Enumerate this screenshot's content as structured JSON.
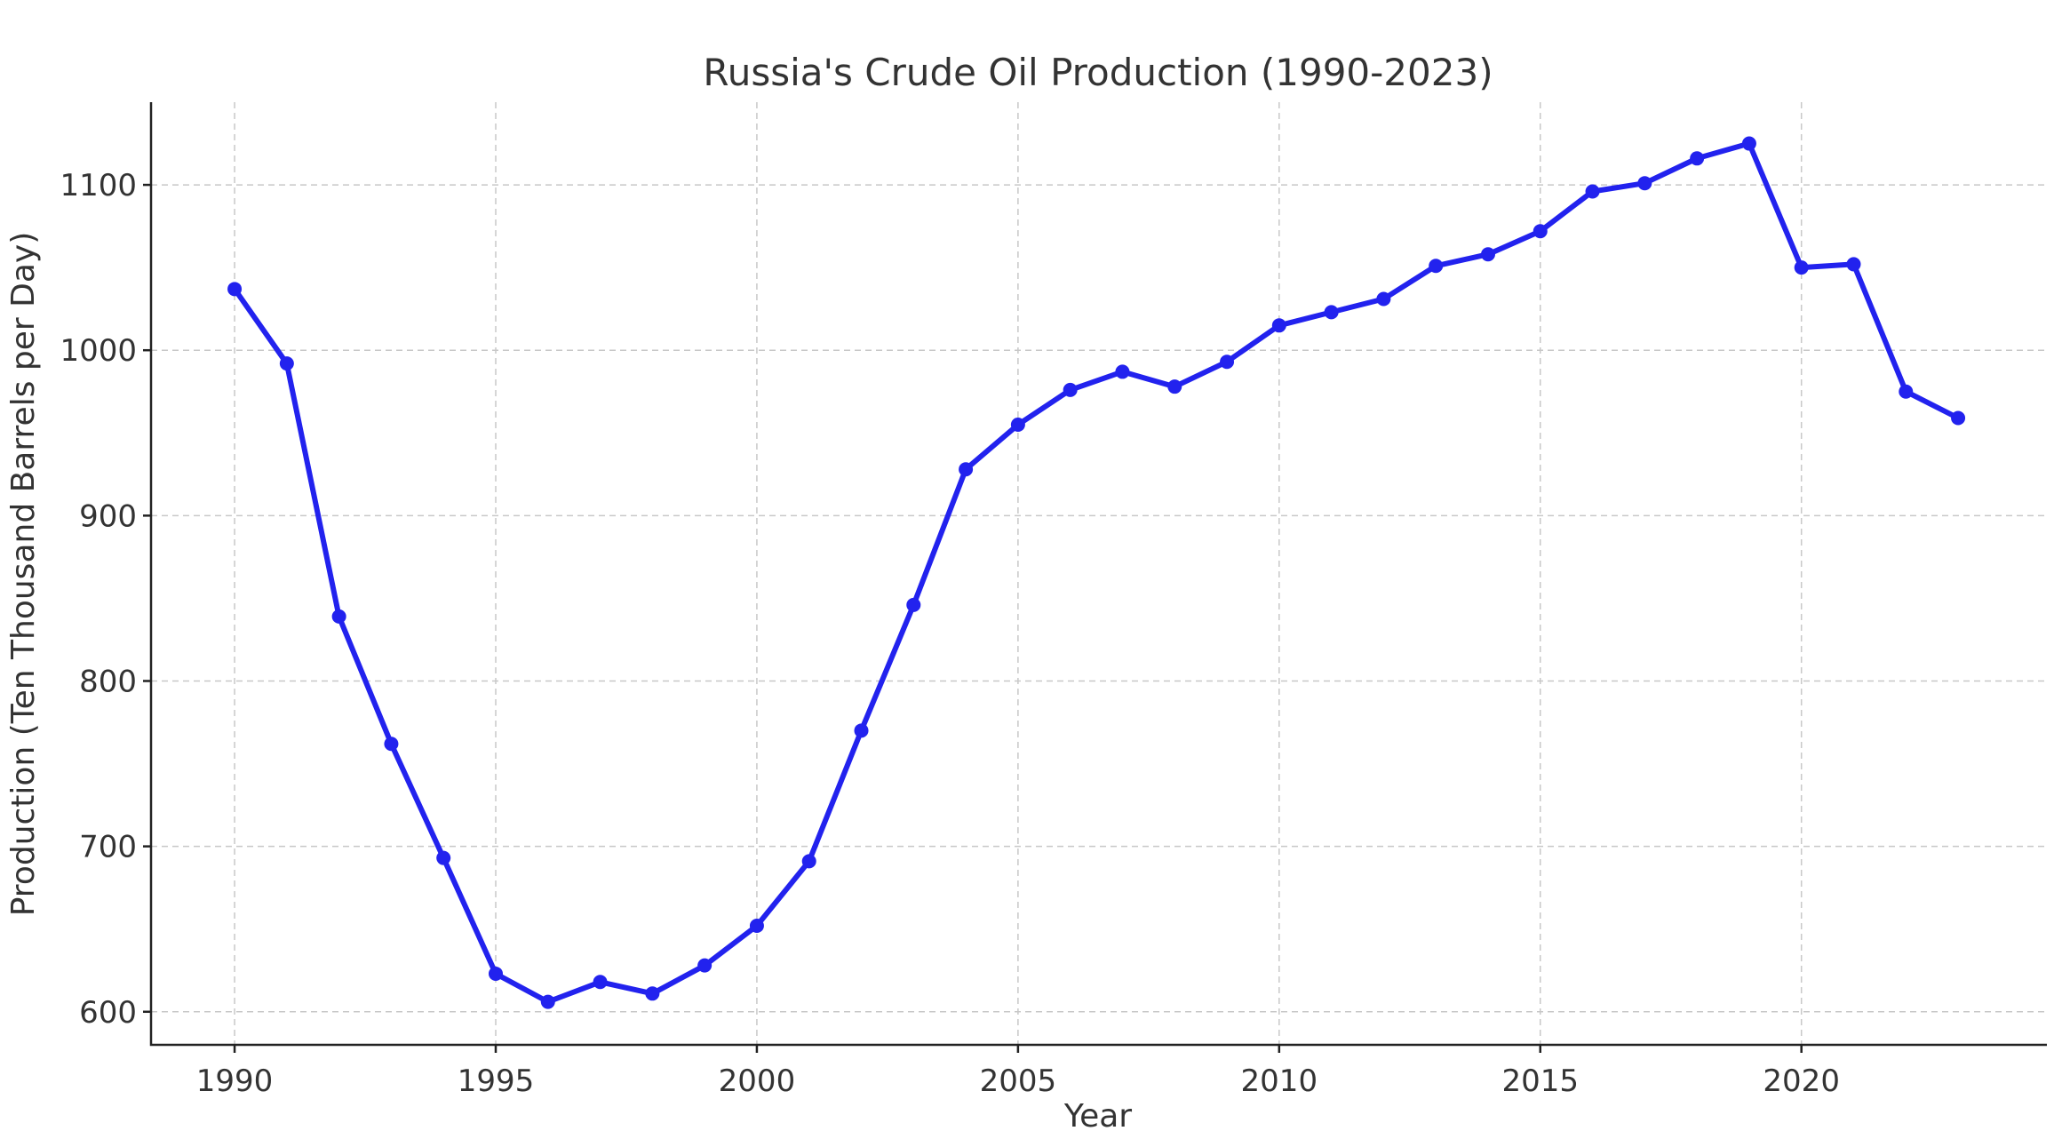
{
  "chart_data": {
    "type": "line",
    "title": "Russia's Crude Oil Production (1990-2023)",
    "xlabel": "Year",
    "ylabel": "Production (Ten Thousand Barrels per Day)",
    "xlim": [
      1988.4,
      2024.7
    ],
    "ylim": [
      580,
      1150
    ],
    "xticks": [
      1990,
      1995,
      2000,
      2005,
      2010,
      2015,
      2020
    ],
    "yticks": [
      600,
      700,
      800,
      900,
      1000,
      1100
    ],
    "grid": true,
    "color": "#2222ee",
    "x": [
      1990,
      1991,
      1992,
      1993,
      1994,
      1995,
      1996,
      1997,
      1998,
      1999,
      2000,
      2001,
      2002,
      2003,
      2004,
      2005,
      2006,
      2007,
      2008,
      2009,
      2010,
      2011,
      2012,
      2013,
      2014,
      2015,
      2016,
      2017,
      2018,
      2019,
      2020,
      2021,
      2022,
      2023
    ],
    "y": [
      1037,
      992,
      839,
      762,
      693,
      623,
      606,
      618,
      611,
      628,
      652,
      691,
      770,
      846,
      928,
      955,
      976,
      987,
      978,
      993,
      1015,
      1023,
      1031,
      1051,
      1058,
      1072,
      1096,
      1101,
      1116,
      1125,
      1050,
      1052,
      975,
      959
    ]
  }
}
